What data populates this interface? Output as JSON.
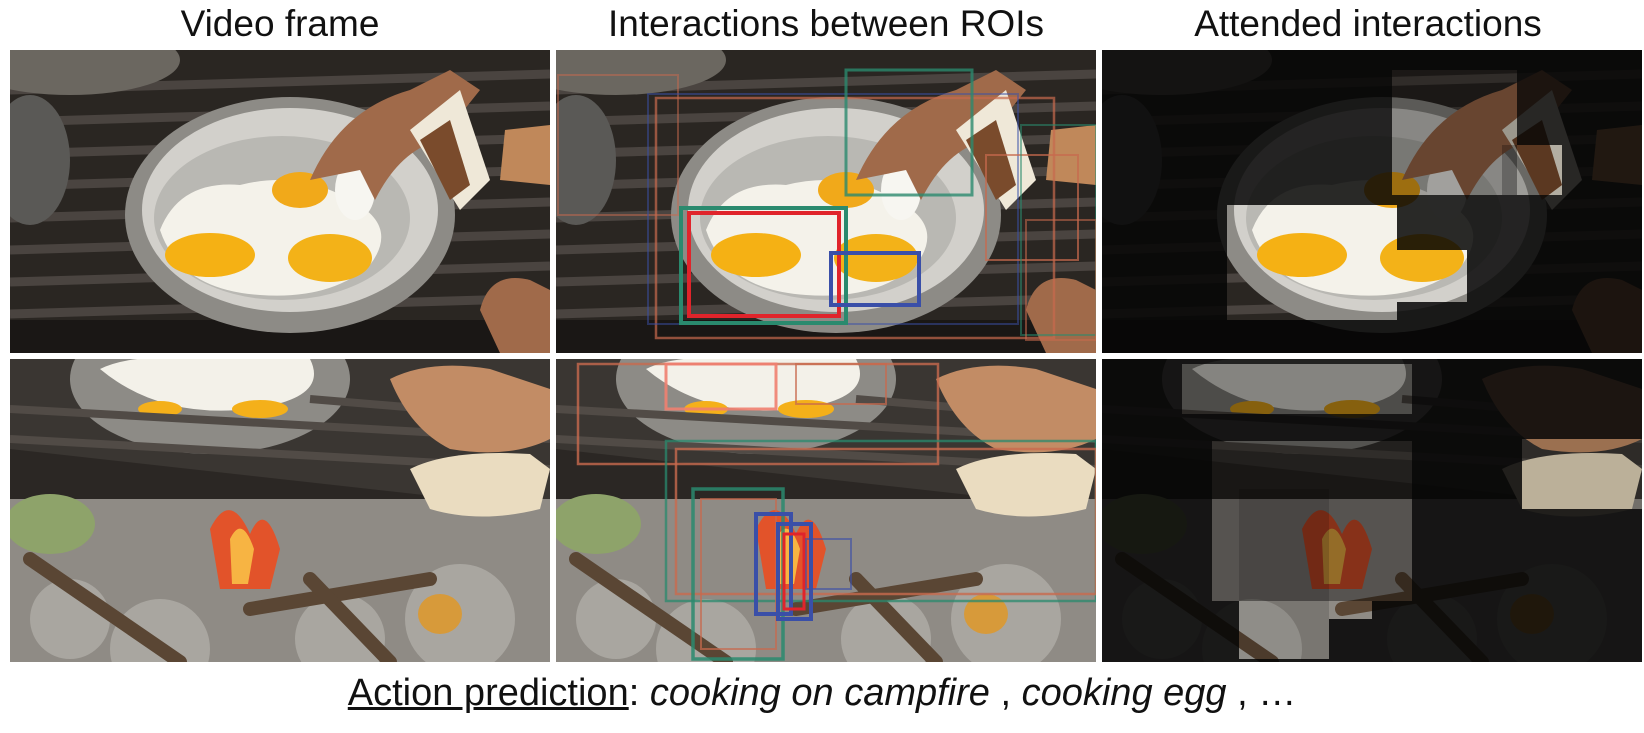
{
  "titles": {
    "video_frame": "Video frame",
    "interactions": "Interactions between ROIs",
    "attended": "Attended interactions"
  },
  "caption": {
    "label": "Action prediction",
    "colon": ": ",
    "items": [
      "cooking on campfire",
      "cooking egg"
    ],
    "separator": " , ",
    "ellipsis": "…"
  },
  "roi_colors": {
    "strong_interaction": "#e0242b",
    "subject_roi": "#3a4fa8",
    "object_roi": "#2a8a6e",
    "weak_interaction": "#c86a4d"
  }
}
